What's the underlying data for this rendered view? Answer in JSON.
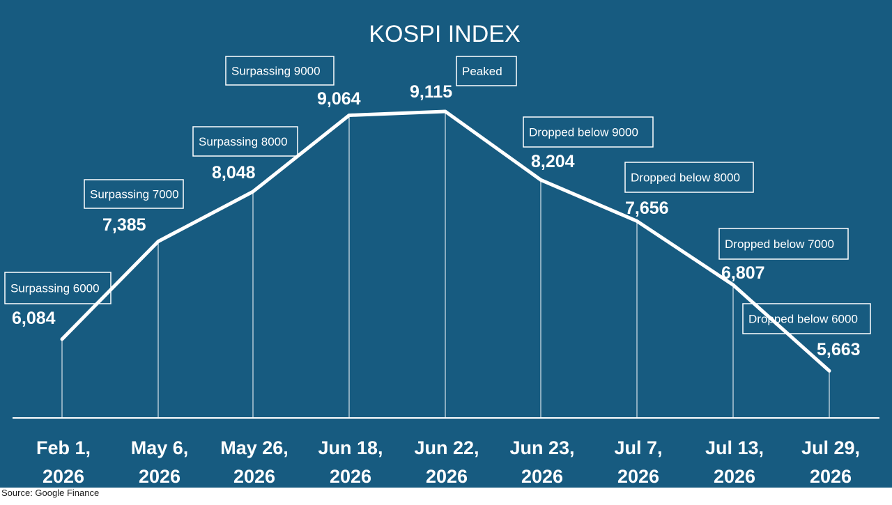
{
  "chart_data": {
    "type": "line",
    "title": "KOSPI INDEX",
    "xlabel": "",
    "ylabel": "",
    "categories": [
      [
        "Feb 1,",
        "2026"
      ],
      [
        "May 6,",
        "2026"
      ],
      [
        "May 26,",
        "2026"
      ],
      [
        "Jun 18,",
        "2026"
      ],
      [
        "Jun 22,",
        "2026"
      ],
      [
        "Jun 23,",
        "2026"
      ],
      [
        "Jul 7,",
        "2026"
      ],
      [
        "Jul 13,",
        "2026"
      ],
      [
        "Jul 29,",
        "2026"
      ]
    ],
    "series": [
      {
        "values": [
          6084,
          7385,
          8048,
          9064,
          9115,
          8204,
          7656,
          6807,
          5663
        ]
      }
    ],
    "data_labels": [
      "6,084",
      "7,385",
      "8,048",
      "9,064",
      "9,115",
      "8,204",
      "7,656",
      "6,807",
      "5,663"
    ],
    "annotations": [
      "Surpassing 6000",
      "Surpassing 7000",
      "Surpassing 8000",
      "Surpassing 9000",
      "Peaked",
      "Dropped below 9000",
      "Dropped below 8000",
      "Dropped below 7000",
      "Dropped below 6000"
    ],
    "grid": false,
    "legend": "none"
  },
  "source": "Source: Google Finance",
  "colors": {
    "background": "#175b80",
    "line": "#ffffff",
    "text": "#ffffff",
    "source_text": "#1a1a1a"
  }
}
